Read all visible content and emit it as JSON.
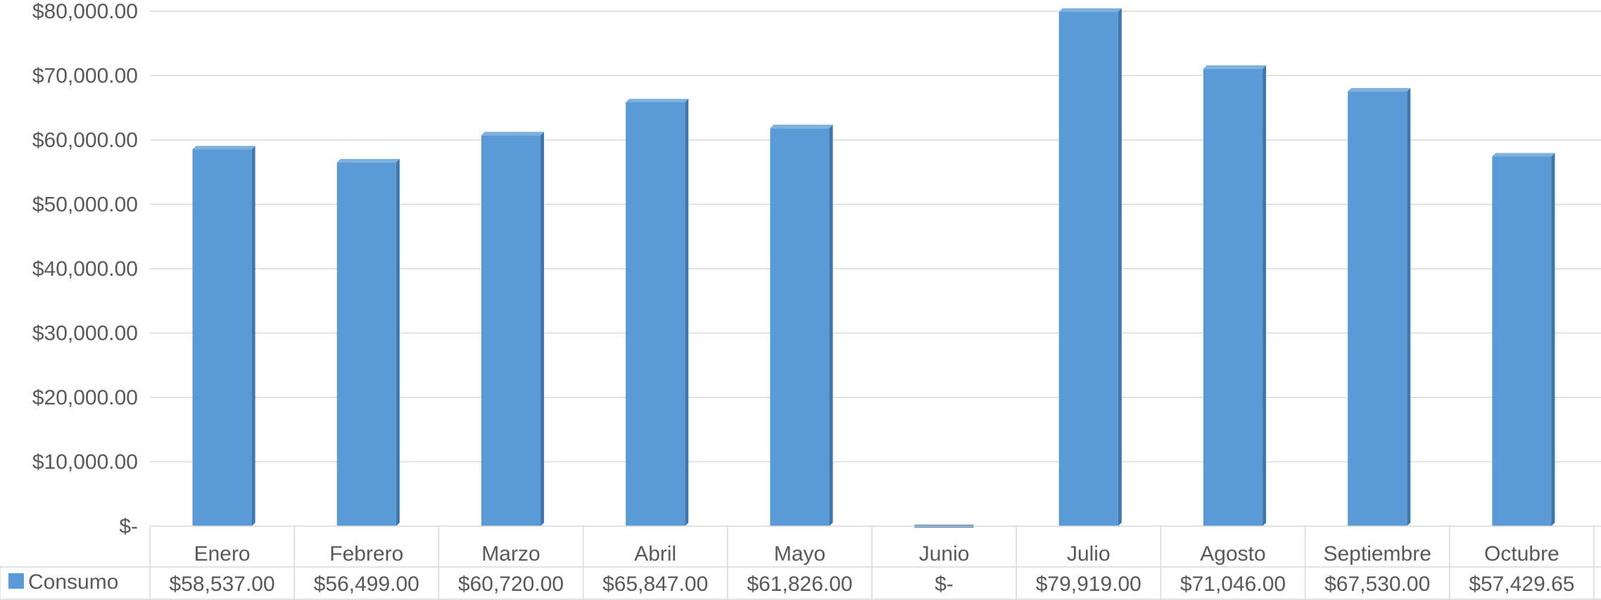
{
  "chart_data": {
    "type": "bar",
    "title": "",
    "xlabel": "",
    "ylabel": "",
    "ylim": [
      0,
      80000
    ],
    "y_ticks": [
      0,
      10000,
      20000,
      30000,
      40000,
      50000,
      60000,
      70000,
      80000
    ],
    "y_tick_labels": [
      "$-",
      "$10,000.00",
      "$20,000.00",
      "$30,000.00",
      "$40,000.00",
      "$50,000.00",
      "$60,000.00",
      "$70,000.00",
      "$80,000.00"
    ],
    "grid": true,
    "legend_placement": "left of data table",
    "data_table": true,
    "bar_color": "#5B9BD5",
    "bar_side_color": "#3F77AD",
    "categories": [
      "Enero",
      "Febrero",
      "Marzo",
      "Abril",
      "Mayo",
      "Junio",
      "Julio",
      "Agosto",
      "Septiembre",
      "Octubre"
    ],
    "series": [
      {
        "name": "Consumo",
        "values": [
          58537.0,
          56499.0,
          60720.0,
          65847.0,
          61826.0,
          0,
          79919.0,
          71046.0,
          67530.0,
          57429.65
        ],
        "value_labels": [
          "$58,537.00",
          "$56,499.00",
          "$60,720.00",
          "$65,847.00",
          "$61,826.00",
          "$-",
          "$79,919.00",
          "$71,046.00",
          "$67,530.00",
          "$57,429.65"
        ]
      }
    ]
  }
}
